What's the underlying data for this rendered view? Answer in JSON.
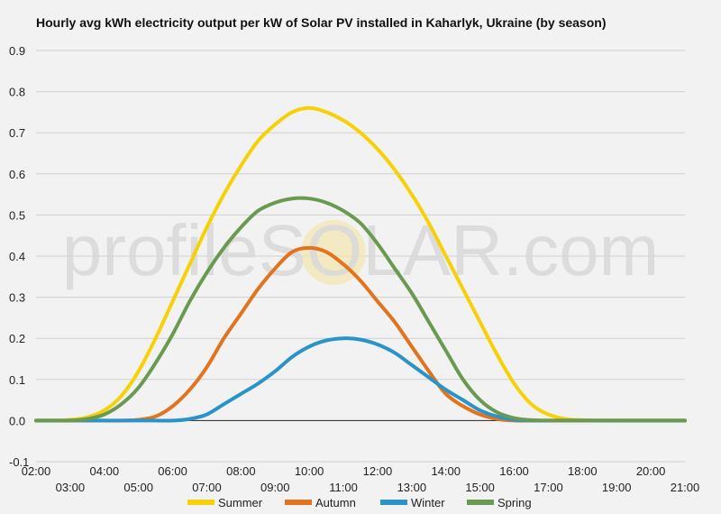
{
  "watermark": "profileSOLAR.com",
  "chart_data": {
    "type": "line",
    "title": "Hourly avg kWh electricity output per kW of Solar PV installed in Kaharlyk, Ukraine (by season)",
    "xlabel": "",
    "ylabel": "",
    "ylim": [
      -0.1,
      0.9
    ],
    "yticks": [
      "-0.1",
      "0.0",
      "0.1",
      "0.2",
      "0.3",
      "0.4",
      "0.5",
      "0.6",
      "0.7",
      "0.8",
      "0.9"
    ],
    "x_tick_labels": [
      "02:00",
      "03:00",
      "04:00",
      "05:00",
      "06:00",
      "07:00",
      "08:00",
      "09:00",
      "10:00",
      "11:00",
      "12:00",
      "13:00",
      "14:00",
      "15:00",
      "16:00",
      "17:00",
      "18:00",
      "19:00",
      "20:00",
      "21:00"
    ],
    "x": [
      2,
      2.5,
      3,
      3.5,
      4,
      4.5,
      5,
      5.5,
      6,
      6.5,
      7,
      7.5,
      8,
      8.5,
      9,
      9.5,
      10,
      10.5,
      11,
      11.5,
      12,
      12.5,
      13,
      13.5,
      14,
      14.5,
      15,
      15.5,
      16,
      16.5,
      17,
      17.5,
      18,
      18.5,
      19,
      19.5,
      20,
      20.5,
      21
    ],
    "grid": true,
    "legend_position": "bottom",
    "series": [
      {
        "name": "Summer",
        "color": "#f7d108",
        "values": [
          0.0,
          0.0,
          0.002,
          0.008,
          0.025,
          0.06,
          0.12,
          0.2,
          0.29,
          0.38,
          0.47,
          0.55,
          0.62,
          0.68,
          0.72,
          0.75,
          0.76,
          0.75,
          0.73,
          0.7,
          0.66,
          0.61,
          0.55,
          0.48,
          0.4,
          0.32,
          0.24,
          0.16,
          0.09,
          0.04,
          0.015,
          0.004,
          0.001,
          0.0,
          0.0,
          0.0,
          0.0,
          0.0,
          0.0
        ]
      },
      {
        "name": "Autumn",
        "color": "#e2731f",
        "values": [
          0.0,
          0.0,
          0.0,
          0.0,
          0.0,
          0.0,
          0.002,
          0.01,
          0.035,
          0.075,
          0.13,
          0.2,
          0.26,
          0.32,
          0.37,
          0.41,
          0.42,
          0.41,
          0.38,
          0.34,
          0.29,
          0.24,
          0.18,
          0.12,
          0.065,
          0.035,
          0.015,
          0.004,
          0.0,
          0.0,
          0.0,
          0.0,
          0.0,
          0.0,
          0.0,
          0.0,
          0.0,
          0.0,
          0.0
        ]
      },
      {
        "name": "Winter",
        "color": "#2a93c7",
        "values": [
          0.0,
          0.0,
          0.0,
          0.0,
          0.0,
          0.0,
          0.0,
          0.0,
          0.0,
          0.004,
          0.015,
          0.04,
          0.065,
          0.09,
          0.12,
          0.155,
          0.18,
          0.195,
          0.2,
          0.197,
          0.185,
          0.165,
          0.135,
          0.105,
          0.075,
          0.05,
          0.025,
          0.01,
          0.002,
          0.0,
          0.0,
          0.0,
          0.0,
          0.0,
          0.0,
          0.0,
          0.0,
          0.0,
          0.0
        ]
      },
      {
        "name": "Spring",
        "color": "#6a9a4f",
        "values": [
          0.0,
          0.0,
          0.0,
          0.004,
          0.015,
          0.04,
          0.08,
          0.14,
          0.21,
          0.29,
          0.36,
          0.42,
          0.47,
          0.51,
          0.53,
          0.54,
          0.54,
          0.53,
          0.51,
          0.48,
          0.43,
          0.37,
          0.31,
          0.24,
          0.17,
          0.1,
          0.05,
          0.02,
          0.006,
          0.001,
          0.0,
          0.0,
          0.0,
          0.0,
          0.0,
          0.0,
          0.0,
          0.0,
          0.0
        ]
      }
    ]
  }
}
